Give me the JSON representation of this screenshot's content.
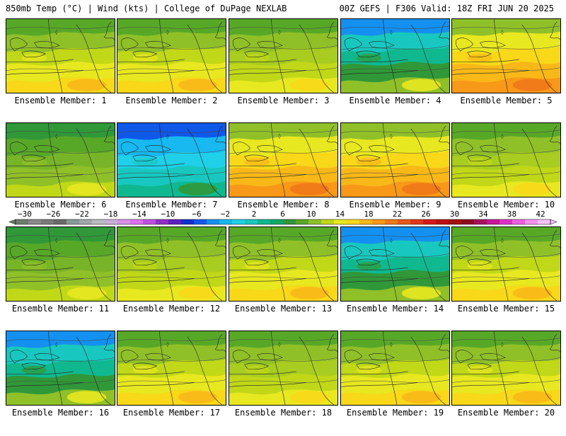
{
  "header": {
    "left": "850mb Temp (°C) | Wind (kts) | College of DuPage NEXLAB",
    "right": "00Z GEFS | F306 Valid: 18Z FRI JUN 20 2025"
  },
  "caption_prefix": "Ensemble Member:",
  "colorbar": {
    "labels": [
      "−30",
      "−26",
      "−22",
      "−18",
      "−14",
      "−10",
      "−6",
      "−2",
      "2",
      "6",
      "10",
      "14",
      "18",
      "22",
      "26",
      "30",
      "34",
      "38",
      "42"
    ],
    "colors": [
      "#6e7c6e",
      "#8a8a8a",
      "#7a7a7a",
      "#6a6a6a",
      "#8a9a9a",
      "#a0a8ac",
      "#b8bcc0",
      "#c8b0d8",
      "#d890e8",
      "#e070f0",
      "#c050e0",
      "#9030c8",
      "#6020c0",
      "#1030d0",
      "#1058e8",
      "#1490f0",
      "#18b8f0",
      "#20d0e8",
      "#18c8c0",
      "#10b890",
      "#10a868",
      "#309838",
      "#58a828",
      "#90c028",
      "#c0d818",
      "#e8e820",
      "#f8d818",
      "#f8b818",
      "#f89818",
      "#f07818",
      "#e85818",
      "#e03818",
      "#d81818",
      "#c01010",
      "#a01010",
      "#900820",
      "#a81060",
      "#c81898",
      "#e030c8",
      "#f060e0",
      "#f890f0",
      "#f8c0f8"
    ]
  },
  "members": [
    {
      "number": "1",
      "theme": "warm"
    },
    {
      "number": "2",
      "theme": "warm"
    },
    {
      "number": "3",
      "theme": "mild"
    },
    {
      "number": "4",
      "theme": "cool"
    },
    {
      "number": "5",
      "theme": "hot"
    },
    {
      "number": "6",
      "theme": "green"
    },
    {
      "number": "7",
      "theme": "cold"
    },
    {
      "number": "8",
      "theme": "hot"
    },
    {
      "number": "9",
      "theme": "hot"
    },
    {
      "number": "10",
      "theme": "mild"
    },
    {
      "number": "11",
      "theme": "green"
    },
    {
      "number": "12",
      "theme": "mild"
    },
    {
      "number": "13",
      "theme": "warm"
    },
    {
      "number": "14",
      "theme": "cool"
    },
    {
      "number": "15",
      "theme": "warm"
    },
    {
      "number": "16",
      "theme": "cool"
    },
    {
      "number": "17",
      "theme": "warm"
    },
    {
      "number": "18",
      "theme": "mild"
    },
    {
      "number": "19",
      "theme": "warm"
    },
    {
      "number": "20",
      "theme": "warm"
    }
  ],
  "theme_colors": {
    "warm": [
      "#58a828",
      "#90c028",
      "#c0d818",
      "#e8e820",
      "#f8d818",
      "#f8b818"
    ],
    "mild": [
      "#58a828",
      "#90c028",
      "#a8cc20",
      "#c0d818",
      "#e8e820",
      "#f8d818"
    ],
    "green": [
      "#309838",
      "#58a828",
      "#78b428",
      "#90c028",
      "#c0d818",
      "#e8e820"
    ],
    "cool": [
      "#1490f0",
      "#18c8c0",
      "#10b890",
      "#309838",
      "#90c028",
      "#e8e820"
    ],
    "cold": [
      "#1058e8",
      "#18b8f0",
      "#20d0e8",
      "#18c8c0",
      "#10b890",
      "#309838"
    ],
    "hot": [
      "#90c028",
      "#e8e820",
      "#f8d818",
      "#f8b818",
      "#f89818",
      "#f07818"
    ]
  }
}
